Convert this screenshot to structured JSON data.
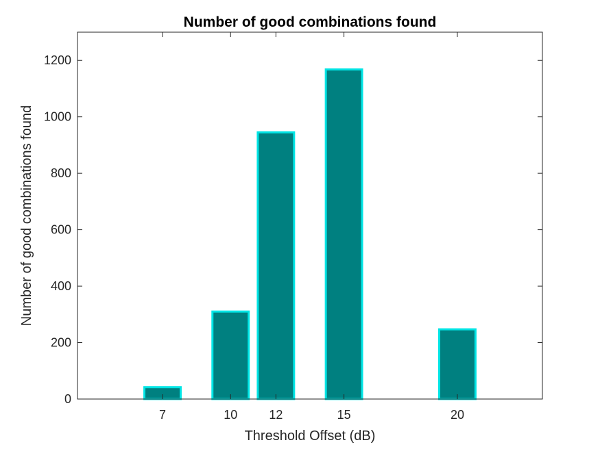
{
  "chart_data": {
    "type": "bar",
    "title": "Number of good combinations found",
    "xlabel": "Threshold Offset (dB)",
    "ylabel": "Number of good combinations found",
    "x": [
      7,
      10,
      12,
      15,
      20
    ],
    "values": [
      42,
      310,
      945,
      1168,
      247
    ],
    "xticks": [
      7,
      10,
      12,
      15,
      20
    ],
    "xlim": [
      3.25,
      23.75
    ],
    "yticks": [
      0,
      200,
      400,
      600,
      800,
      1000,
      1200
    ],
    "ylim": [
      0,
      1300
    ],
    "bar_width": 1.6,
    "grid": false,
    "legend": "none",
    "colors": {
      "bar_fill": "#008080",
      "bar_edge": "#00E5E5"
    }
  }
}
